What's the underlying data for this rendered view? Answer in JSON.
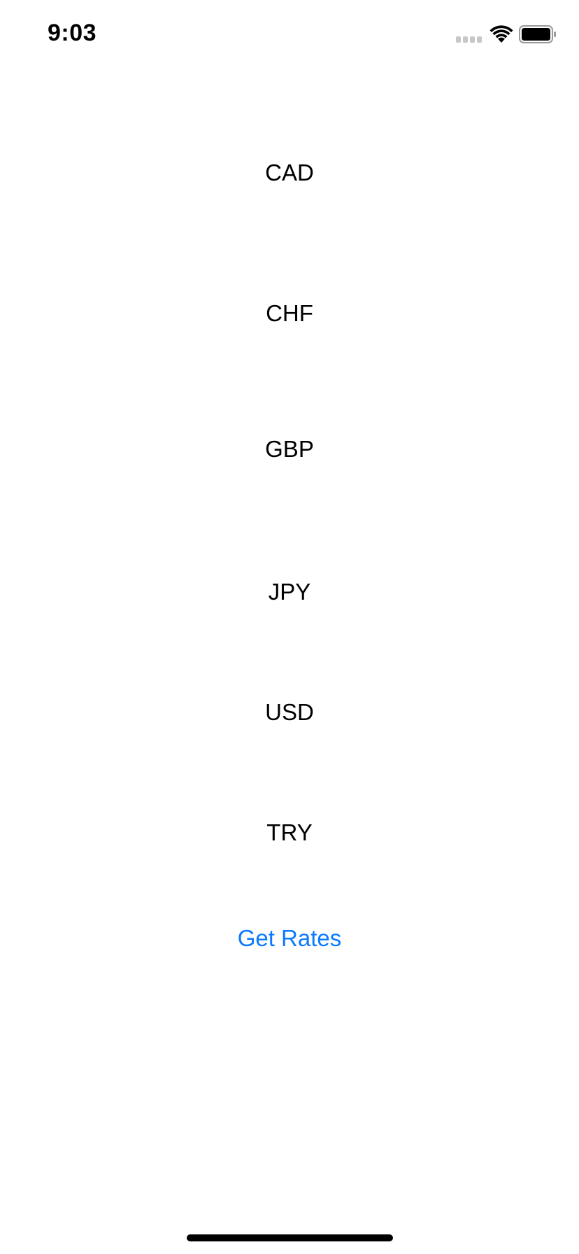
{
  "status_bar": {
    "time": "9:03"
  },
  "currencies": [
    {
      "code": "CAD"
    },
    {
      "code": "CHF"
    },
    {
      "code": "GBP"
    },
    {
      "code": "JPY"
    },
    {
      "code": "USD"
    },
    {
      "code": "TRY"
    }
  ],
  "actions": {
    "get_rates_label": "Get Rates"
  },
  "colors": {
    "accent": "#0a7aff",
    "text": "#000000",
    "background": "#ffffff"
  }
}
